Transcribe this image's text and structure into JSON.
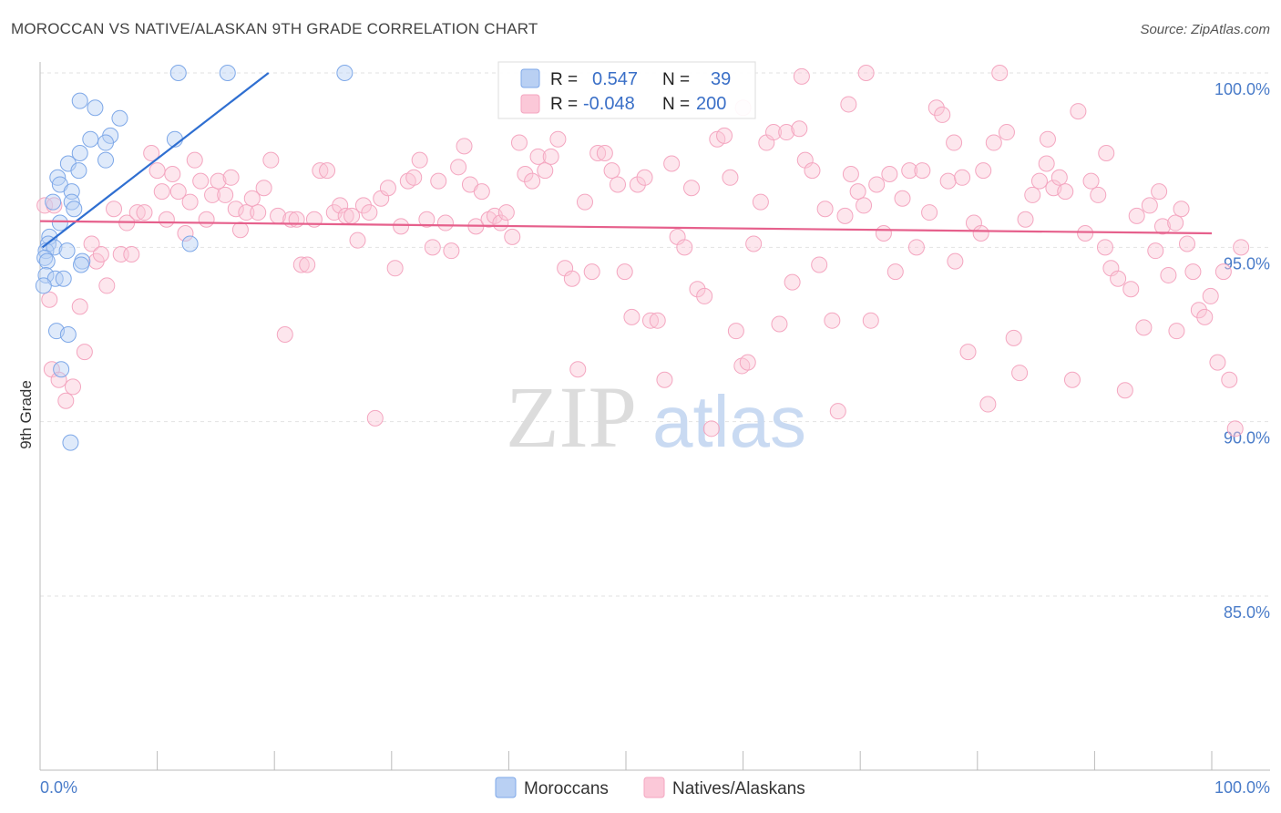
{
  "chart_data": {
    "type": "scatter",
    "title": "MOROCCAN VS NATIVE/ALASKAN 9TH GRADE CORRELATION CHART",
    "source": "Source: ZipAtlas.com",
    "ylabel": "9th Grade",
    "xlim": [
      0,
      100
    ],
    "ylim": [
      80.5,
      100.8
    ],
    "y_ticks": [
      {
        "value": 100,
        "label": "100.0%"
      },
      {
        "value": 95,
        "label": "95.0%"
      },
      {
        "value": 90,
        "label": "90.0%"
      },
      {
        "value": 85,
        "label": "85.0%"
      }
    ],
    "x_tick_labels": {
      "left": "0.0%",
      "right": "100.0%"
    },
    "watermark": {
      "zip": "ZIP",
      "atlas": "atlas"
    },
    "stats": [
      {
        "r_label": "R =",
        "r_value": "0.547",
        "n_label": "N =",
        "n_value": "39"
      },
      {
        "r_label": "R =",
        "r_value": "-0.048",
        "n_label": "N =",
        "n_value": "200"
      }
    ],
    "series": [
      {
        "name": "Moroccans",
        "color": "#7ea8e8",
        "line_color": "#2f6fd1",
        "trend": {
          "x0": 0.2,
          "y0": 95.0,
          "x1": 19.5,
          "y1": 100.0
        },
        "points": [
          [
            11.8,
            100.0
          ],
          [
            16.0,
            100.0
          ],
          [
            26.0,
            100.0
          ],
          [
            3.4,
            99.2
          ],
          [
            4.7,
            99.0
          ],
          [
            6.8,
            98.7
          ],
          [
            6.0,
            98.2
          ],
          [
            4.3,
            98.1
          ],
          [
            11.5,
            98.1
          ],
          [
            5.6,
            98.0
          ],
          [
            3.4,
            97.7
          ],
          [
            5.6,
            97.5
          ],
          [
            2.4,
            97.4
          ],
          [
            3.3,
            97.2
          ],
          [
            1.5,
            97.0
          ],
          [
            1.7,
            96.8
          ],
          [
            2.7,
            96.6
          ],
          [
            1.1,
            96.3
          ],
          [
            2.7,
            96.3
          ],
          [
            2.9,
            96.1
          ],
          [
            1.7,
            95.7
          ],
          [
            0.8,
            95.3
          ],
          [
            0.7,
            95.1
          ],
          [
            0.5,
            94.9
          ],
          [
            12.8,
            95.1
          ],
          [
            1.2,
            95.0
          ],
          [
            2.3,
            94.9
          ],
          [
            0.4,
            94.7
          ],
          [
            0.6,
            94.6
          ],
          [
            3.6,
            94.6
          ],
          [
            3.5,
            94.5
          ],
          [
            0.5,
            94.2
          ],
          [
            1.3,
            94.1
          ],
          [
            2.0,
            94.1
          ],
          [
            0.3,
            93.9
          ],
          [
            1.4,
            92.6
          ],
          [
            2.4,
            92.5
          ],
          [
            1.8,
            91.5
          ],
          [
            2.6,
            89.4
          ]
        ]
      },
      {
        "name": "Natives/Alaskans",
        "color": "#f4a6c0",
        "line_color": "#e6608c",
        "trend": {
          "x0": 0,
          "y0": 95.75,
          "x1": 100,
          "y1": 95.4
        },
        "points": [
          [
            0.4,
            96.2
          ],
          [
            0.8,
            93.5
          ],
          [
            1.0,
            91.5
          ],
          [
            1.2,
            96.2
          ],
          [
            1.6,
            91.2
          ],
          [
            2.2,
            90.6
          ],
          [
            2.8,
            91.0
          ],
          [
            3.4,
            93.3
          ],
          [
            3.8,
            92.0
          ],
          [
            4.4,
            95.1
          ],
          [
            4.8,
            94.6
          ],
          [
            5.2,
            94.8
          ],
          [
            5.7,
            93.9
          ],
          [
            6.3,
            96.1
          ],
          [
            6.9,
            94.8
          ],
          [
            7.4,
            95.7
          ],
          [
            7.8,
            94.8
          ],
          [
            8.3,
            96.0
          ],
          [
            8.9,
            96.0
          ],
          [
            9.5,
            97.7
          ],
          [
            10.0,
            97.2
          ],
          [
            10.4,
            96.6
          ],
          [
            10.8,
            95.8
          ],
          [
            11.3,
            97.1
          ],
          [
            11.8,
            96.6
          ],
          [
            12.4,
            95.4
          ],
          [
            12.8,
            96.3
          ],
          [
            13.2,
            97.5
          ],
          [
            13.7,
            96.9
          ],
          [
            14.2,
            95.8
          ],
          [
            14.7,
            96.5
          ],
          [
            15.2,
            96.9
          ],
          [
            15.8,
            96.5
          ],
          [
            16.3,
            97.0
          ],
          [
            16.7,
            96.1
          ],
          [
            17.1,
            95.5
          ],
          [
            17.6,
            96.0
          ],
          [
            18.1,
            96.4
          ],
          [
            18.6,
            96.0
          ],
          [
            19.1,
            96.7
          ],
          [
            19.7,
            97.5
          ],
          [
            20.3,
            95.9
          ],
          [
            20.9,
            92.5
          ],
          [
            21.4,
            95.8
          ],
          [
            21.9,
            95.8
          ],
          [
            22.3,
            94.5
          ],
          [
            22.8,
            94.5
          ],
          [
            23.4,
            95.8
          ],
          [
            23.9,
            97.2
          ],
          [
            24.5,
            97.2
          ],
          [
            25.1,
            96.0
          ],
          [
            25.6,
            96.2
          ],
          [
            26.1,
            95.9
          ],
          [
            26.6,
            95.9
          ],
          [
            27.1,
            95.2
          ],
          [
            27.6,
            96.2
          ],
          [
            28.1,
            96.0
          ],
          [
            28.6,
            90.1
          ],
          [
            29.1,
            96.4
          ],
          [
            29.7,
            96.7
          ],
          [
            30.3,
            94.4
          ],
          [
            30.8,
            95.6
          ],
          [
            31.4,
            96.9
          ],
          [
            31.9,
            97.0
          ],
          [
            32.4,
            97.5
          ],
          [
            33.0,
            95.8
          ],
          [
            33.5,
            95.0
          ],
          [
            34.0,
            96.9
          ],
          [
            34.6,
            95.7
          ],
          [
            35.1,
            94.9
          ],
          [
            35.7,
            97.3
          ],
          [
            36.2,
            97.9
          ],
          [
            36.7,
            96.8
          ],
          [
            37.2,
            95.6
          ],
          [
            37.7,
            96.6
          ],
          [
            38.3,
            95.8
          ],
          [
            38.8,
            95.9
          ],
          [
            39.3,
            95.7
          ],
          [
            39.8,
            96.0
          ],
          [
            40.3,
            95.3
          ],
          [
            40.9,
            98.0
          ],
          [
            41.4,
            97.1
          ],
          [
            42.0,
            96.9
          ],
          [
            42.5,
            97.6
          ],
          [
            43.1,
            97.2
          ],
          [
            43.6,
            97.6
          ],
          [
            44.2,
            98.1
          ],
          [
            44.8,
            94.4
          ],
          [
            45.4,
            94.1
          ],
          [
            45.9,
            91.5
          ],
          [
            46.5,
            96.3
          ],
          [
            47.1,
            94.3
          ],
          [
            47.6,
            97.7
          ],
          [
            48.2,
            97.7
          ],
          [
            48.8,
            97.2
          ],
          [
            49.3,
            96.8
          ],
          [
            49.9,
            94.3
          ],
          [
            50.5,
            93.0
          ],
          [
            51.0,
            96.8
          ],
          [
            51.6,
            97.0
          ],
          [
            52.1,
            92.9
          ],
          [
            52.7,
            92.9
          ],
          [
            53.3,
            91.2
          ],
          [
            53.9,
            97.4
          ],
          [
            54.4,
            95.3
          ],
          [
            55.0,
            95.0
          ],
          [
            55.6,
            96.7
          ],
          [
            56.1,
            93.8
          ],
          [
            56.7,
            93.6
          ],
          [
            57.3,
            89.8
          ],
          [
            57.8,
            98.1
          ],
          [
            58.4,
            98.2
          ],
          [
            58.9,
            97.0
          ],
          [
            59.4,
            92.6
          ],
          [
            59.9,
            91.6
          ],
          [
            60.4,
            91.7
          ],
          [
            60.9,
            95.1
          ],
          [
            61.5,
            96.3
          ],
          [
            62.0,
            98.0
          ],
          [
            62.6,
            98.3
          ],
          [
            63.1,
            92.8
          ],
          [
            63.7,
            98.3
          ],
          [
            64.2,
            94.0
          ],
          [
            64.8,
            98.4
          ],
          [
            65.3,
            97.5
          ],
          [
            65.9,
            97.2
          ],
          [
            66.5,
            94.5
          ],
          [
            67.0,
            96.1
          ],
          [
            67.6,
            92.9
          ],
          [
            68.1,
            90.3
          ],
          [
            68.7,
            95.9
          ],
          [
            69.2,
            97.1
          ],
          [
            69.8,
            96.6
          ],
          [
            70.3,
            96.2
          ],
          [
            70.9,
            92.9
          ],
          [
            71.4,
            96.8
          ],
          [
            72.0,
            95.4
          ],
          [
            72.5,
            97.1
          ],
          [
            73.0,
            94.3
          ],
          [
            73.6,
            96.4
          ],
          [
            74.2,
            97.2
          ],
          [
            74.8,
            95.0
          ],
          [
            75.3,
            97.2
          ],
          [
            75.9,
            96.0
          ],
          [
            76.5,
            99.0
          ],
          [
            77.0,
            98.8
          ],
          [
            77.5,
            96.9
          ],
          [
            78.1,
            94.6
          ],
          [
            78.7,
            97.0
          ],
          [
            79.2,
            92.0
          ],
          [
            79.7,
            95.7
          ],
          [
            80.3,
            95.4
          ],
          [
            80.9,
            90.5
          ],
          [
            81.4,
            98.0
          ],
          [
            81.9,
            100.0
          ],
          [
            82.5,
            98.3
          ],
          [
            83.1,
            92.4
          ],
          [
            83.6,
            91.4
          ],
          [
            84.1,
            95.8
          ],
          [
            84.7,
            96.5
          ],
          [
            85.3,
            96.9
          ],
          [
            85.9,
            97.4
          ],
          [
            86.5,
            96.7
          ],
          [
            87.0,
            97.0
          ],
          [
            87.5,
            96.6
          ],
          [
            88.1,
            91.2
          ],
          [
            88.6,
            98.9
          ],
          [
            89.2,
            95.4
          ],
          [
            89.7,
            96.9
          ],
          [
            90.3,
            96.5
          ],
          [
            90.9,
            95.0
          ],
          [
            91.4,
            94.4
          ],
          [
            92.0,
            94.1
          ],
          [
            92.6,
            90.9
          ],
          [
            93.1,
            93.8
          ],
          [
            93.6,
            95.9
          ],
          [
            94.2,
            92.7
          ],
          [
            94.7,
            96.2
          ],
          [
            95.2,
            94.9
          ],
          [
            95.8,
            95.6
          ],
          [
            96.3,
            94.2
          ],
          [
            96.9,
            95.7
          ],
          [
            97.4,
            96.1
          ],
          [
            97.9,
            95.1
          ],
          [
            98.4,
            94.3
          ],
          [
            98.9,
            93.2
          ],
          [
            99.4,
            93.0
          ],
          [
            99.9,
            93.6
          ],
          [
            100.5,
            91.7
          ],
          [
            101.0,
            94.3
          ],
          [
            101.5,
            91.2
          ],
          [
            102.0,
            89.8
          ],
          [
            102.5,
            95.0
          ],
          [
            70.5,
            100.0
          ],
          [
            69.0,
            99.1
          ],
          [
            65.0,
            99.9
          ],
          [
            60.0,
            99.0
          ],
          [
            78.0,
            98.0
          ],
          [
            80.5,
            97.2
          ],
          [
            86.0,
            98.1
          ],
          [
            91.0,
            97.7
          ],
          [
            95.5,
            96.6
          ],
          [
            97.0,
            92.6
          ]
        ]
      }
    ]
  }
}
